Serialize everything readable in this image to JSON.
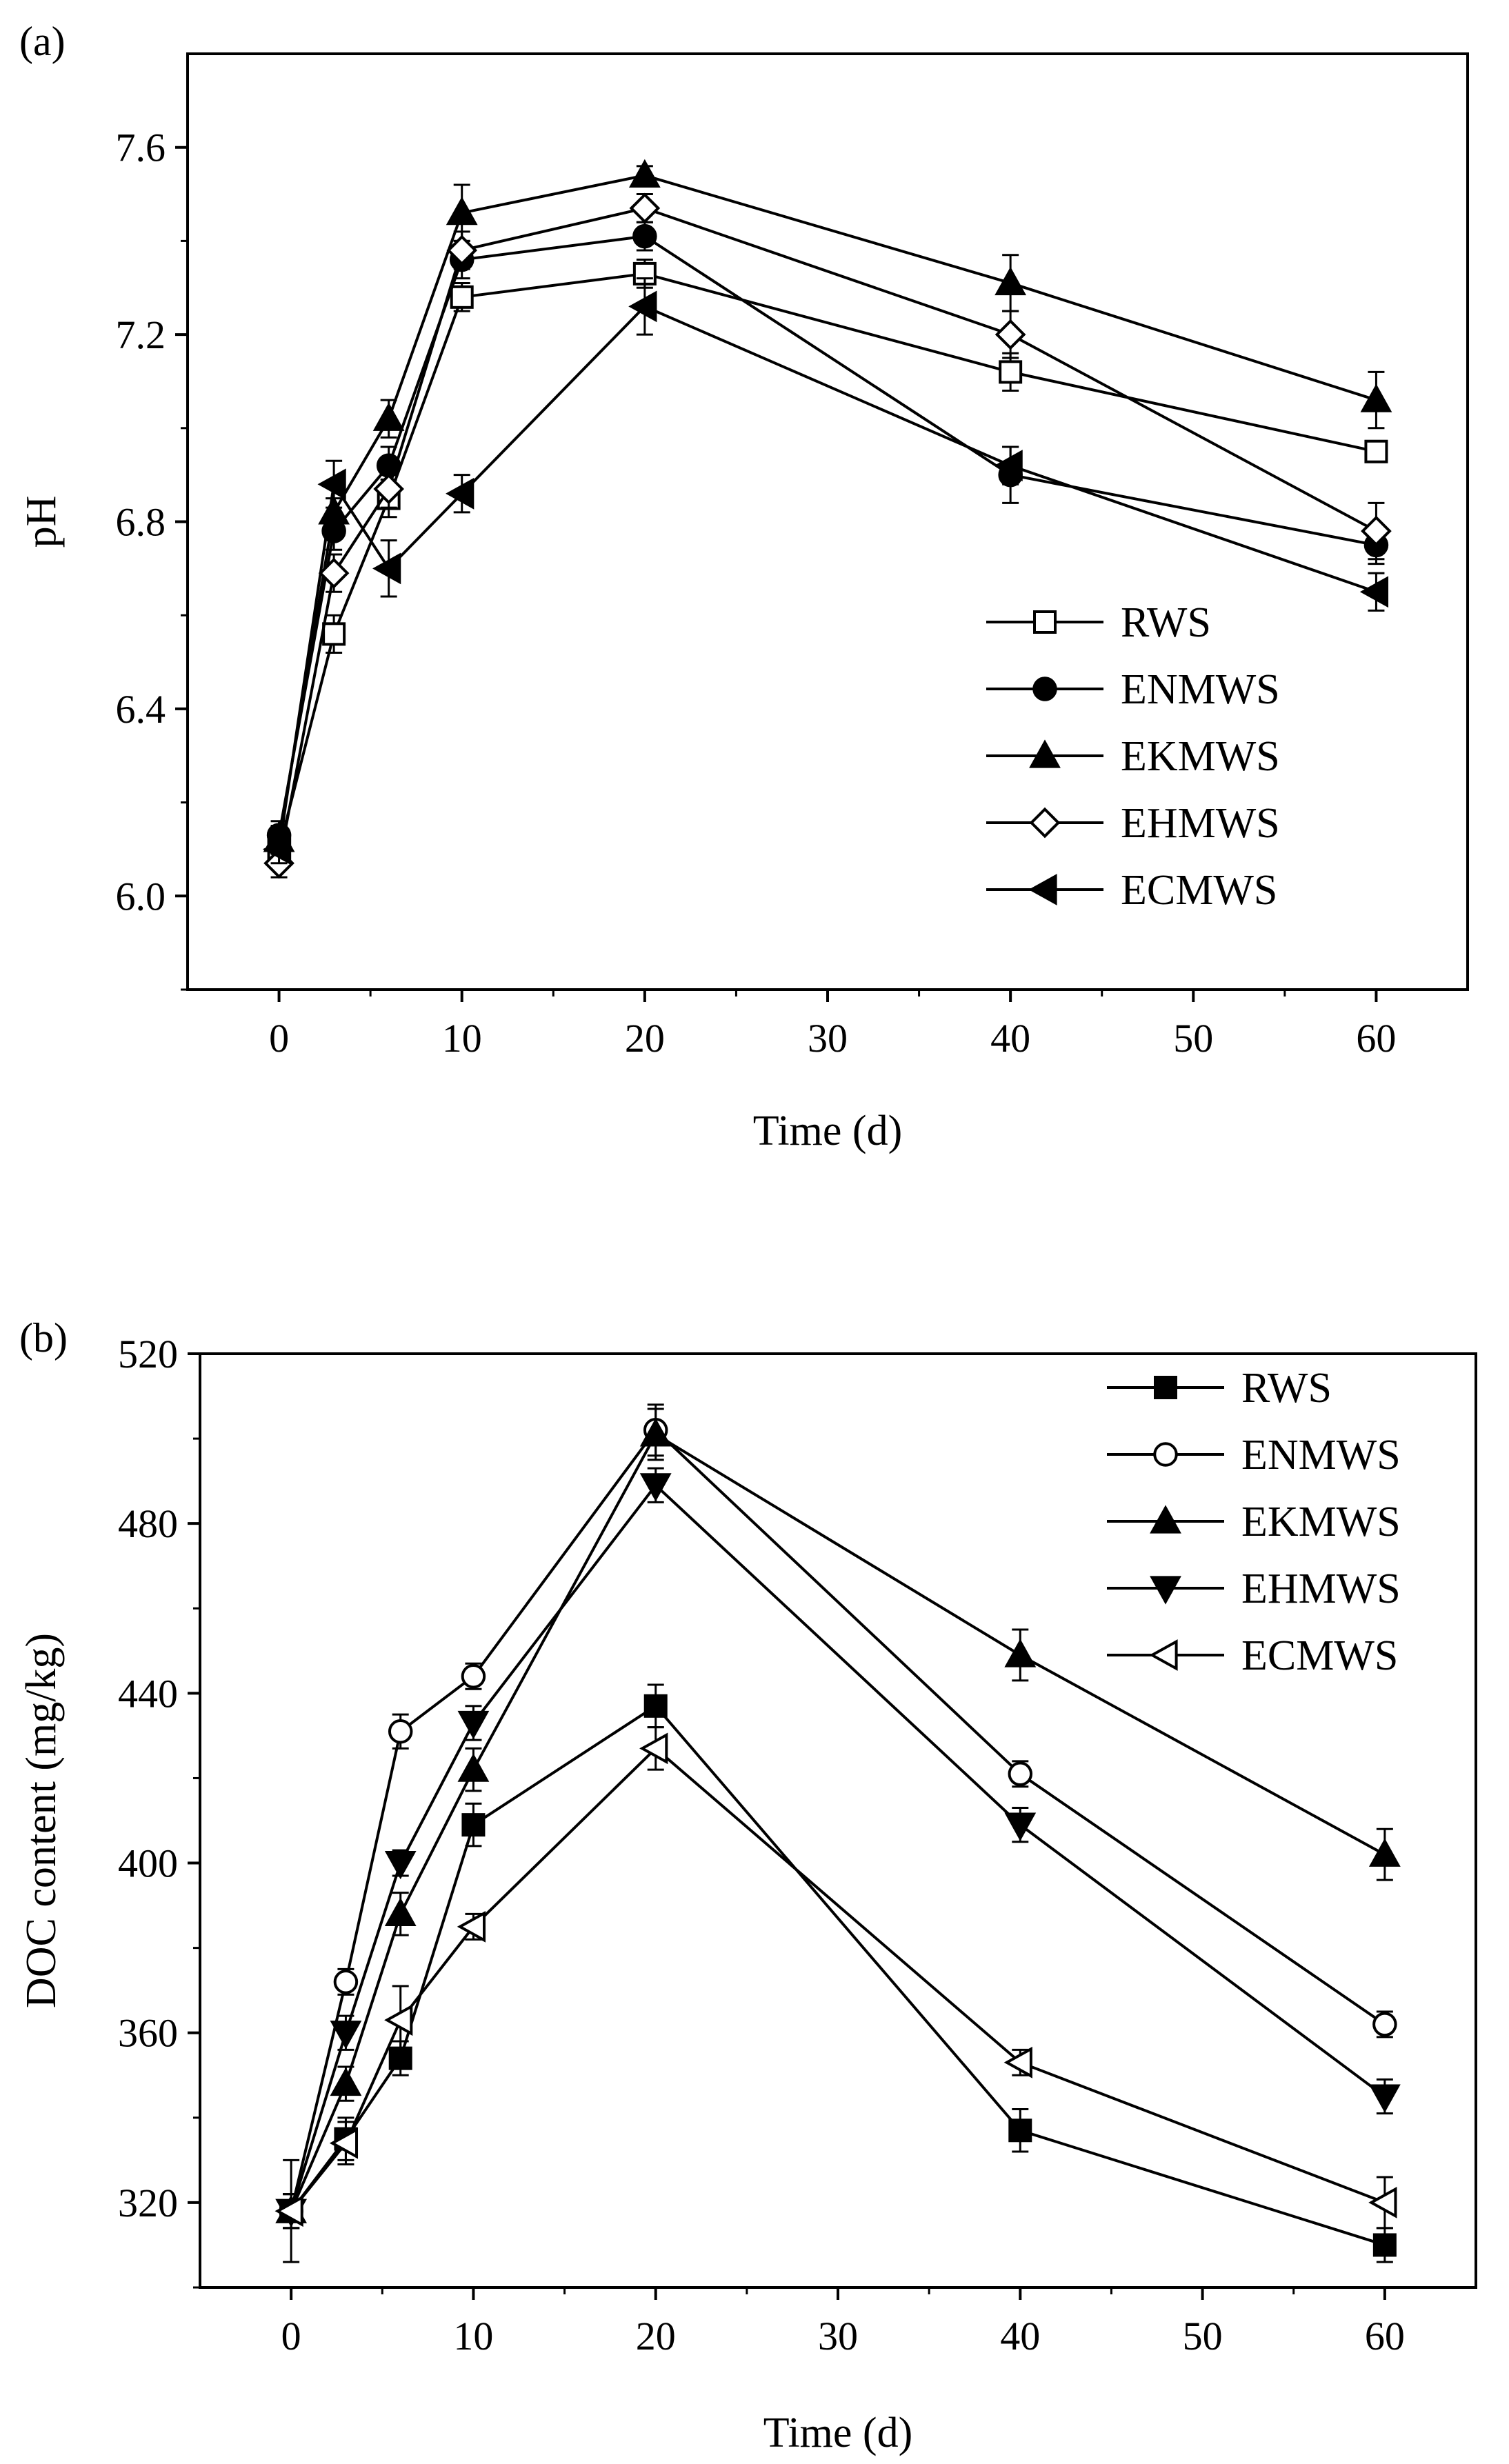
{
  "chart_data": [
    {
      "panel_label": "(a)",
      "type": "line",
      "xlabel": "Time (d)",
      "ylabel": "pH",
      "xlim": [
        -5,
        65
      ],
      "ylim": [
        5.8,
        7.8
      ],
      "xticks": [
        "0",
        "10",
        "20",
        "30",
        "40",
        "50",
        "60"
      ],
      "yticks": [
        "6.0",
        "6.4",
        "6.8",
        "7.2",
        "7.6"
      ],
      "legend_position": "bottom-right",
      "x": [
        0,
        3,
        6,
        10,
        20,
        40,
        60
      ],
      "series": [
        {
          "name": "RWS",
          "marker": "square-open",
          "values": [
            6.1,
            6.56,
            6.85,
            7.28,
            7.33,
            7.12,
            6.95
          ],
          "errors": [
            0.03,
            0.04,
            0.04,
            0.03,
            0.03,
            0.04,
            0.02
          ]
        },
        {
          "name": "ENMWS",
          "marker": "circle-filled",
          "values": [
            6.13,
            6.78,
            6.92,
            7.36,
            7.41,
            6.9,
            6.75
          ],
          "errors": [
            0.03,
            0.04,
            0.04,
            0.04,
            0.03,
            0.06,
            0.04
          ]
        },
        {
          "name": "EKMWS",
          "marker": "triangle-up-filled",
          "values": [
            6.12,
            6.82,
            7.02,
            7.46,
            7.54,
            7.31,
            7.06
          ],
          "errors": [
            0.03,
            0.03,
            0.04,
            0.06,
            0.02,
            0.06,
            0.06
          ]
        },
        {
          "name": "EHMWS",
          "marker": "diamond-open",
          "values": [
            6.07,
            6.69,
            6.87,
            7.38,
            7.47,
            7.2,
            6.78
          ],
          "errors": [
            0.03,
            0.04,
            0.04,
            0.04,
            0.03,
            0.05,
            0.06
          ]
        },
        {
          "name": "ECMWS",
          "marker": "triangle-left-filled",
          "values": [
            6.1,
            6.88,
            6.7,
            6.86,
            7.26,
            6.92,
            6.65
          ],
          "errors": [
            0.03,
            0.05,
            0.06,
            0.04,
            0.06,
            0.04,
            0.04
          ]
        }
      ]
    },
    {
      "panel_label": "(b)",
      "type": "line",
      "xlabel": "Time (d)",
      "ylabel": "DOC content (mg/kg)",
      "xlim": [
        -5,
        65
      ],
      "ylim": [
        300,
        520
      ],
      "xticks": [
        "0",
        "10",
        "20",
        "30",
        "40",
        "50",
        "60"
      ],
      "yticks": [
        "320",
        "360",
        "400",
        "440",
        "480",
        "520"
      ],
      "legend_position": "top-right",
      "x": [
        0,
        3,
        6,
        10,
        20,
        40,
        60
      ],
      "series": [
        {
          "name": "RWS",
          "marker": "square-filled",
          "values": [
            318,
            335,
            354,
            409,
            437,
            337,
            310
          ],
          "errors": [
            4,
            5,
            4,
            5,
            5,
            5,
            4
          ]
        },
        {
          "name": "ENMWS",
          "marker": "circle-open",
          "values": [
            318,
            372,
            431,
            444,
            502,
            421,
            362
          ],
          "errors": [
            4,
            3,
            4,
            3,
            6,
            3,
            3
          ]
        },
        {
          "name": "EKMWS",
          "marker": "triangle-up-filled",
          "values": [
            318,
            348,
            388,
            422,
            501,
            449,
            402
          ],
          "errors": [
            4,
            4,
            5,
            5,
            6,
            6,
            6
          ]
        },
        {
          "name": "EHMWS",
          "marker": "triangle-down-filled",
          "values": [
            318,
            360,
            400,
            433,
            489,
            409,
            345
          ],
          "errors": [
            4,
            4,
            3,
            4,
            4,
            4,
            4
          ]
        },
        {
          "name": "ECMWS",
          "marker": "triangle-left-open",
          "values": [
            318,
            334,
            363,
            385,
            427,
            353,
            320
          ],
          "errors": [
            12,
            5,
            8,
            3,
            5,
            3,
            6
          ]
        }
      ]
    }
  ]
}
